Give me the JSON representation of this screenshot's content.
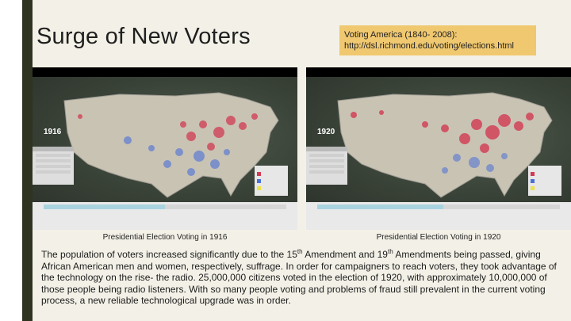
{
  "slide": {
    "title": "Surge of New Voters",
    "source_line1": "Voting America (1840- 2008):",
    "source_line2": "http://dsl.richmond.edu/voting/elections.html"
  },
  "maps": [
    {
      "year": "1916",
      "caption": "Presidential Election Voting in 1916",
      "timeline_progress": 0.5
    },
    {
      "year": "1920",
      "caption": "Presidential Election Voting in 1920",
      "timeline_progress": 0.52
    }
  ],
  "body": {
    "p1": "The population of voters increased significantly due to the 15",
    "sup1": "th",
    "p2": " Amendment and 19",
    "sup2": "th",
    "p3": " Amendments being passed, giving African American men and women, respectively, suffrage. In order for campaigners to reach voters, they took advantage of the technology on the rise- the radio. 25,000,000 citizens voted in the election of 1920, with approximately 10,000,000 of those people being radio listeners. With so many people voting and problems of fraud still prevalent in the current voting process, a new reliable technological upgrade was in order."
  },
  "colors": {
    "background": "#f3f1e7",
    "left_band": "#2e3420",
    "source_box": "#f0c870",
    "republican": "#d23a52",
    "democratic": "#4a6fd8",
    "other": "#e9e34a"
  }
}
